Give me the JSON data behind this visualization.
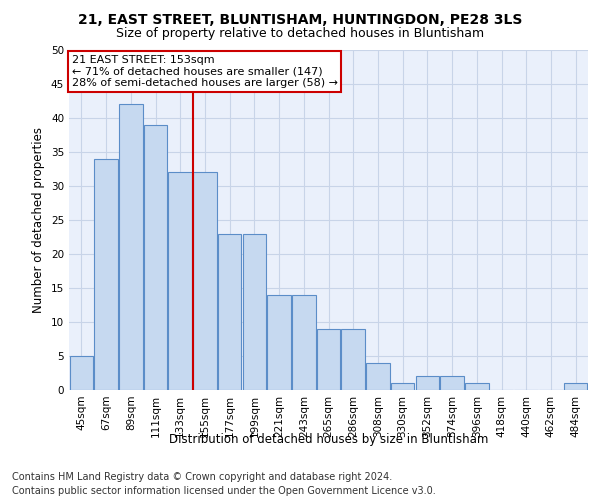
{
  "title": "21, EAST STREET, BLUNTISHAM, HUNTINGDON, PE28 3LS",
  "subtitle": "Size of property relative to detached houses in Bluntisham",
  "xlabel": "Distribution of detached houses by size in Bluntisham",
  "ylabel": "Number of detached properties",
  "categories": [
    "45sqm",
    "67sqm",
    "89sqm",
    "111sqm",
    "133sqm",
    "155sqm",
    "177sqm",
    "199sqm",
    "221sqm",
    "243sqm",
    "265sqm",
    "286sqm",
    "308sqm",
    "330sqm",
    "352sqm",
    "374sqm",
    "396sqm",
    "418sqm",
    "440sqm",
    "462sqm",
    "484sqm"
  ],
  "values": [
    5,
    34,
    42,
    39,
    32,
    32,
    23,
    23,
    14,
    14,
    9,
    9,
    4,
    1,
    2,
    2,
    1,
    0,
    0,
    0,
    1
  ],
  "bar_color": "#c6d9f0",
  "bar_edge_color": "#5b8dc8",
  "annotation_line1": "21 EAST STREET: 153sqm",
  "annotation_line2": "← 71% of detached houses are smaller (147)",
  "annotation_line3": "28% of semi-detached houses are larger (58) →",
  "annotation_box_color": "#ffffff",
  "annotation_box_edge_color": "#cc0000",
  "vline_color": "#cc0000",
  "vline_x_index": 4,
  "ylim": [
    0,
    50
  ],
  "yticks": [
    0,
    5,
    10,
    15,
    20,
    25,
    30,
    35,
    40,
    45,
    50
  ],
  "footer1": "Contains HM Land Registry data © Crown copyright and database right 2024.",
  "footer2": "Contains public sector information licensed under the Open Government Licence v3.0.",
  "plot_bg_color": "#eaf0fb",
  "grid_color": "#c8d4e8",
  "title_fontsize": 10,
  "subtitle_fontsize": 9,
  "axis_label_fontsize": 8.5,
  "tick_fontsize": 7.5,
  "footer_fontsize": 7,
  "annotation_fontsize": 8
}
